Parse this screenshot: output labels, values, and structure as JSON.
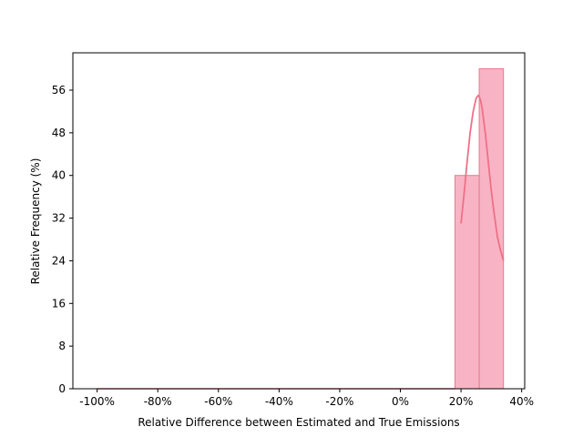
{
  "chart_data": {
    "type": "histogram",
    "title": "",
    "xlabel": "Relative Difference between Estimated and True Emissions",
    "ylabel": "Relative Frequency (%)",
    "xlim": [
      -108,
      41
    ],
    "ylim": [
      0,
      63
    ],
    "x_ticks": [
      {
        "value": -100,
        "label": "-100%"
      },
      {
        "value": -80,
        "label": "-80%"
      },
      {
        "value": -60,
        "label": "-60%"
      },
      {
        "value": -40,
        "label": "-40%"
      },
      {
        "value": -20,
        "label": "-20%"
      },
      {
        "value": 0,
        "label": "0%"
      },
      {
        "value": 20,
        "label": "20%"
      },
      {
        "value": 40,
        "label": "40%"
      }
    ],
    "y_ticks": [
      {
        "value": 0,
        "label": "0"
      },
      {
        "value": 8,
        "label": "8"
      },
      {
        "value": 16,
        "label": "16"
      },
      {
        "value": 24,
        "label": "24"
      },
      {
        "value": 32,
        "label": "32"
      },
      {
        "value": 40,
        "label": "40"
      },
      {
        "value": 48,
        "label": "48"
      },
      {
        "value": 56,
        "label": "56"
      }
    ],
    "bins": [
      {
        "x0": 18.0,
        "x1": 26.0,
        "value": 40
      },
      {
        "x0": 26.0,
        "x1": 34.0,
        "value": 60
      }
    ],
    "baseline_segment": {
      "x0": -100,
      "x1": 18
    },
    "kde": {
      "x": [
        20.0,
        21.0,
        22.0,
        23.0,
        24.0,
        25.0,
        25.7,
        26.0,
        26.5,
        27.0,
        28.0,
        29.0,
        30.0,
        31.0,
        32.0,
        33.0,
        34.0
      ],
      "y": [
        31.0,
        36.5,
        42.5,
        48.0,
        52.0,
        54.5,
        55.0,
        54.8,
        54.0,
        52.5,
        48.0,
        42.5,
        37.0,
        32.5,
        28.5,
        26.0,
        24.0
      ]
    },
    "grid": false,
    "colors": {
      "bar_fill": "#f8b4c4",
      "bar_edge": "#e8778f",
      "kde_line": "#ef7088",
      "axis": "#000000"
    }
  }
}
